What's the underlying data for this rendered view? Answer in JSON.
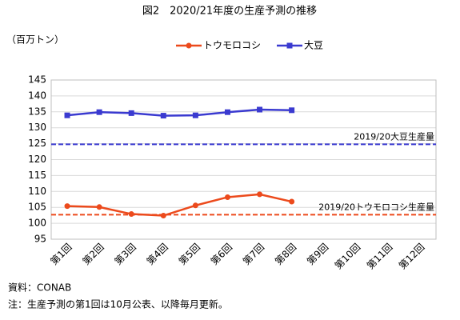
{
  "chart_data": {
    "type": "line",
    "title": "図2　2020/21年度の生産予測の推移",
    "y_axis_label": "（百万トン）",
    "categories": [
      "第1回",
      "第2回",
      "第3回",
      "第4回",
      "第5回",
      "第6回",
      "第7回",
      "第8回",
      "第9回",
      "第10回",
      "第11回",
      "第12回"
    ],
    "series": [
      {
        "name": "トウモロコシ",
        "color": "#ec4a1c",
        "marker": "circle",
        "values": [
          105.4,
          105.1,
          102.9,
          102.4,
          105.6,
          108.2,
          109.1,
          106.8,
          null,
          null,
          null,
          null
        ]
      },
      {
        "name": "大豆",
        "color": "#3a3ad0",
        "marker": "square",
        "values": [
          133.9,
          134.9,
          134.6,
          133.8,
          133.9,
          134.9,
          135.7,
          135.5,
          null,
          null,
          null,
          null
        ]
      }
    ],
    "reference_lines": [
      {
        "label": "2019/20大豆生産量",
        "value": 124.8,
        "color": "#3a3ad0"
      },
      {
        "label": "2019/20トウモロコシ生産量",
        "value": 102.7,
        "color": "#ec4a1c"
      }
    ],
    "ylim": [
      95,
      145
    ],
    "yticks": [
      95,
      100,
      105,
      110,
      115,
      120,
      125,
      130,
      135,
      140,
      145
    ],
    "grid": true,
    "legend_position": "top",
    "notes": [
      "資料：CONAB",
      "注：生産予測の第1回は10月公表、以降毎月更新。"
    ]
  }
}
